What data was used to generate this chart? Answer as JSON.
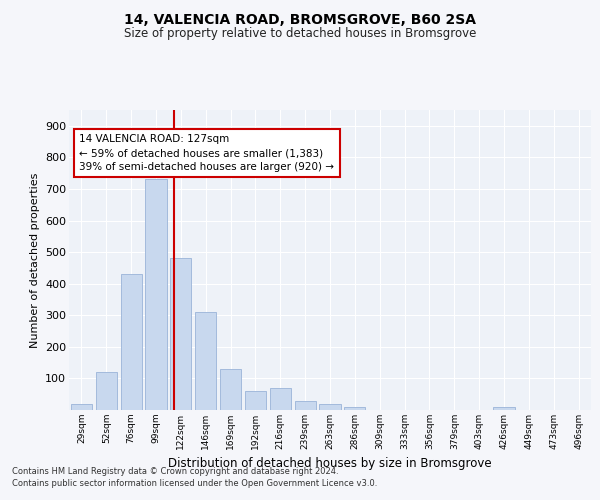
{
  "title1": "14, VALENCIA ROAD, BROMSGROVE, B60 2SA",
  "title2": "Size of property relative to detached houses in Bromsgrove",
  "xlabel": "Distribution of detached houses by size in Bromsgrove",
  "ylabel": "Number of detached properties",
  "bin_labels": [
    "29sqm",
    "52sqm",
    "76sqm",
    "99sqm",
    "122sqm",
    "146sqm",
    "169sqm",
    "192sqm",
    "216sqm",
    "239sqm",
    "263sqm",
    "286sqm",
    "309sqm",
    "333sqm",
    "356sqm",
    "379sqm",
    "403sqm",
    "426sqm",
    "449sqm",
    "473sqm",
    "496sqm"
  ],
  "bar_values": [
    20,
    120,
    430,
    730,
    480,
    310,
    130,
    60,
    70,
    30,
    20,
    10,
    0,
    0,
    0,
    0,
    0,
    10,
    0,
    0,
    0
  ],
  "bar_color": "#c8d8ee",
  "bar_edge_color": "#9ab4d8",
  "marker_color": "#cc0000",
  "annotation_line1": "14 VALENCIA ROAD: 127sqm",
  "annotation_line2": "← 59% of detached houses are smaller (1,383)",
  "annotation_line3": "39% of semi-detached houses are larger (920) →",
  "annotation_box_color": "#ffffff",
  "annotation_box_edge": "#cc0000",
  "ylim": [
    0,
    950
  ],
  "yticks": [
    0,
    100,
    200,
    300,
    400,
    500,
    600,
    700,
    800,
    900
  ],
  "footer1": "Contains HM Land Registry data © Crown copyright and database right 2024.",
  "footer2": "Contains public sector information licensed under the Open Government Licence v3.0.",
  "bg_color": "#eef2f8",
  "grid_color": "#ffffff",
  "fig_bg": "#f5f6fa"
}
